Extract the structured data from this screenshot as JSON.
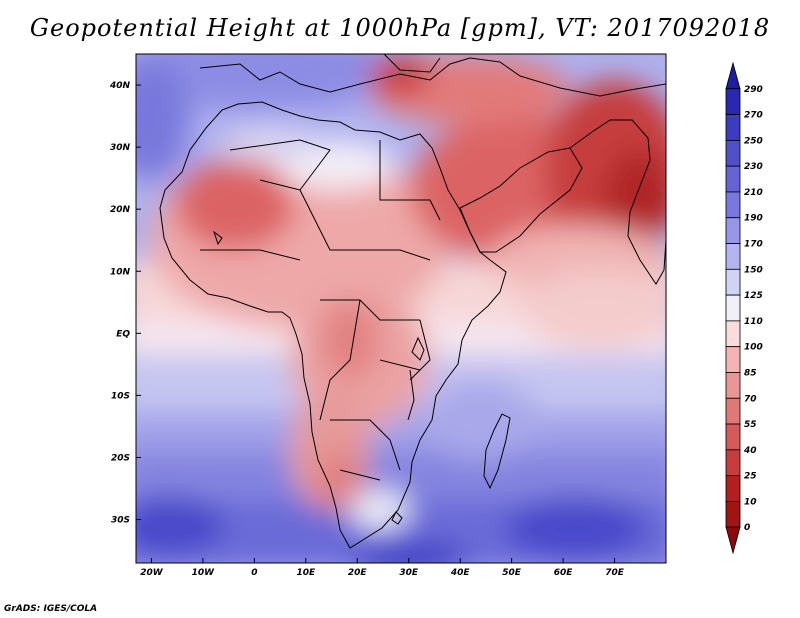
{
  "title": "Geopotential Height at 1000hPa [gpm], VT: 2017092018",
  "credit": "GrADS: IGES/COLA",
  "map": {
    "region": "Africa, Arabian Peninsula and Indian Ocean",
    "projection": "latlon",
    "lon_range": [
      -23,
      80
    ],
    "lat_range": [
      -37,
      45
    ],
    "lon_ticks": [
      "20W",
      "10W",
      "0",
      "10E",
      "20E",
      "30E",
      "40E",
      "50E",
      "60E",
      "70E"
    ],
    "lat_ticks": [
      "40N",
      "30N",
      "20N",
      "10N",
      "EQ",
      "10S",
      "20S",
      "30S"
    ]
  },
  "colorbar": {
    "levels": [
      "290",
      "270",
      "250",
      "230",
      "210",
      "190",
      "170",
      "150",
      "125",
      "110",
      "100",
      "85",
      "70",
      "55",
      "40",
      "25",
      "10",
      "0"
    ],
    "colors": [
      "#1e1ea0",
      "#2828b4",
      "#3c3cc3",
      "#5050cd",
      "#6464d7",
      "#7878e1",
      "#9696eb",
      "#b4b4f0",
      "#d2d2f5",
      "#f0f0fa",
      "#fadcdc",
      "#f5b4b4",
      "#eb9696",
      "#e17878",
      "#d75a5a",
      "#c83c3c",
      "#b41e1e",
      "#a01414",
      "#8c0a0a"
    ]
  }
}
